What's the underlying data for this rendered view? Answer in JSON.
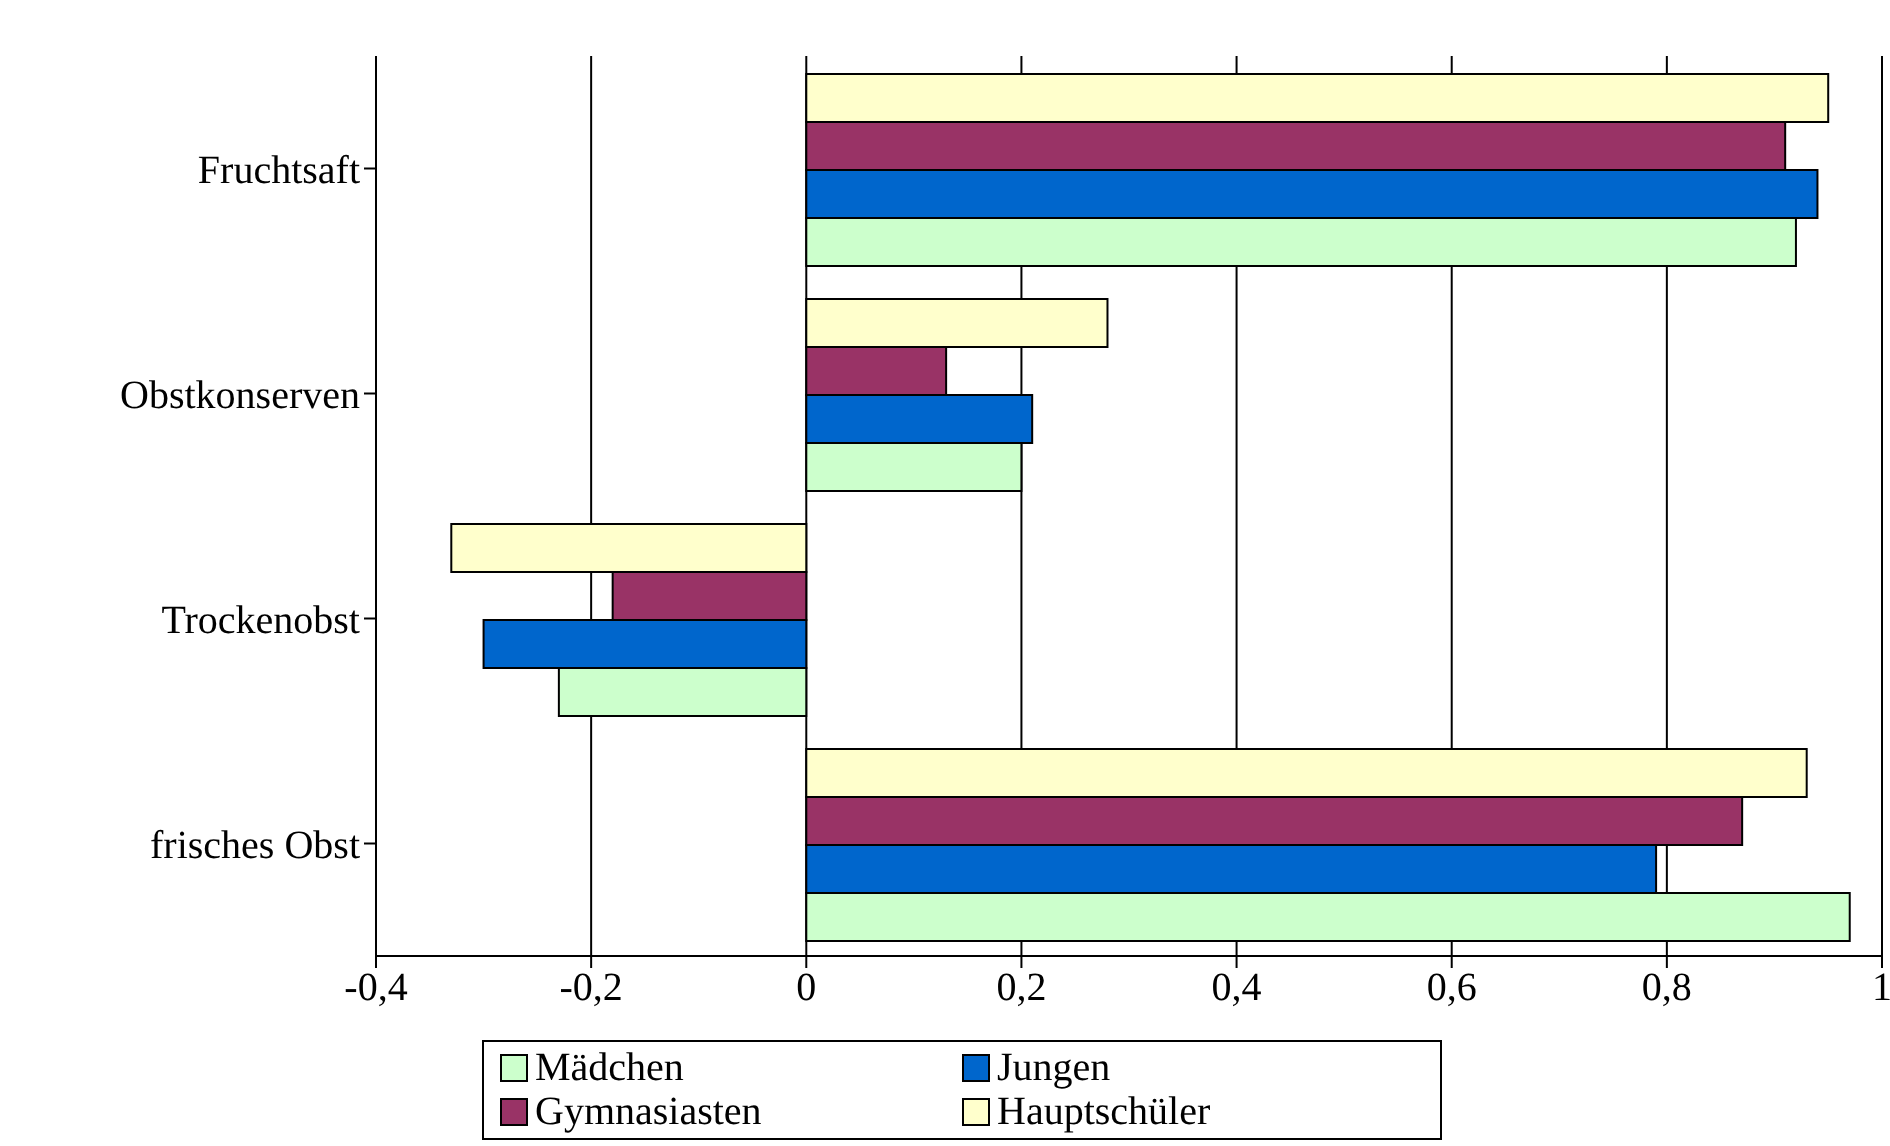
{
  "chart_data": {
    "type": "bar",
    "orientation": "horizontal",
    "categories": [
      "Fruchtsaft",
      "Obstkonserven",
      "Trockenobst",
      "frisches Obst"
    ],
    "series": [
      {
        "name": "Mädchen",
        "color": "#ccffcc",
        "values": [
          0.92,
          0.2,
          -0.23,
          0.97
        ]
      },
      {
        "name": "Jungen",
        "color": "#0066cc",
        "values": [
          0.94,
          0.21,
          -0.3,
          0.79
        ]
      },
      {
        "name": "Gymnasiasten",
        "color": "#993366",
        "values": [
          0.91,
          0.13,
          -0.18,
          0.87
        ]
      },
      {
        "name": "Hauptschüler",
        "color": "#ffffcc",
        "values": [
          0.95,
          0.28,
          -0.33,
          0.93
        ]
      }
    ],
    "xlim": [
      -0.4,
      1
    ],
    "xticks": [
      {
        "value": -0.4,
        "label": "-0,4"
      },
      {
        "value": -0.2,
        "label": "-0,2"
      },
      0,
      {
        "value": 0.2,
        "label": "0,2"
      },
      {
        "value": 0.4,
        "label": "0,4"
      },
      {
        "value": 0.6,
        "label": "0,6"
      },
      {
        "value": 0.8,
        "label": "0,8"
      },
      1
    ],
    "grid": "x",
    "legend": "bottom"
  }
}
